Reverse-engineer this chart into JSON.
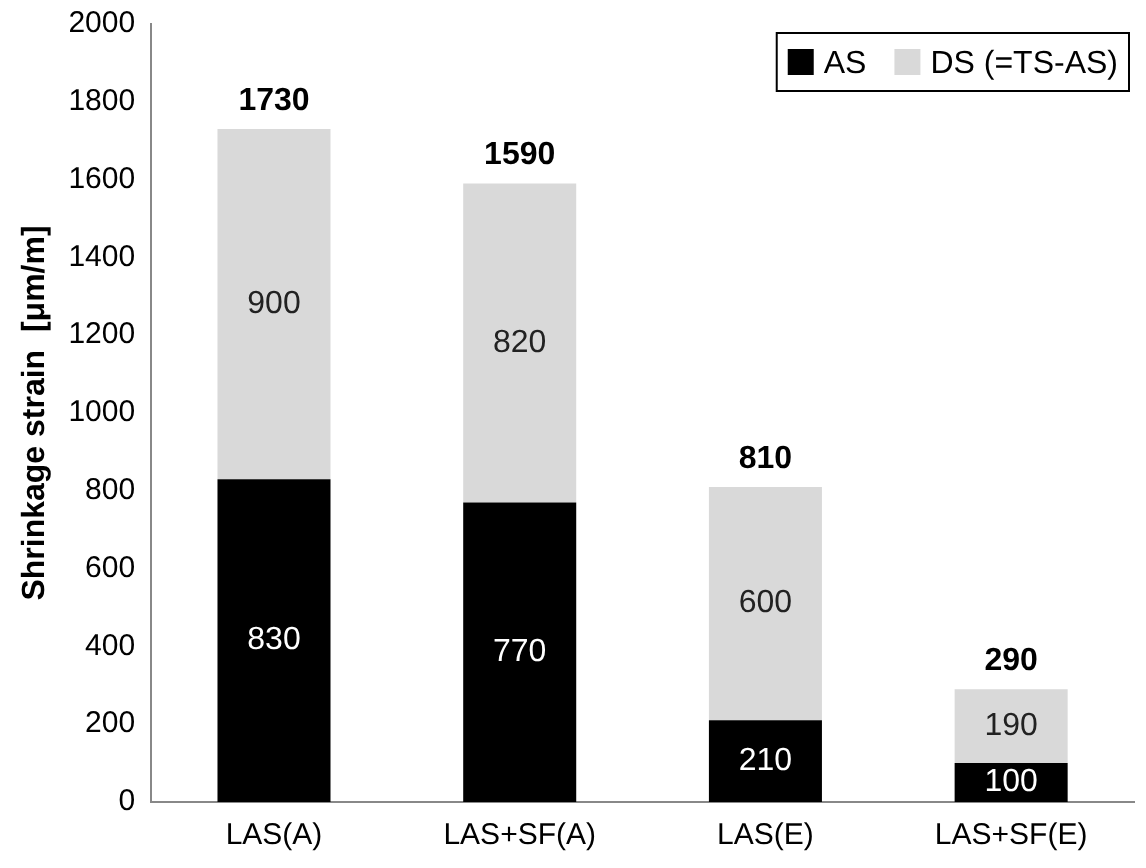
{
  "chart_data": {
    "type": "bar",
    "ylabel": "Shrinkage strain  [μm/m]",
    "categories": [
      "LAS(A)",
      "LAS+SF(A)",
      "LAS(E)",
      "LAS+SF(E)"
    ],
    "series": [
      {
        "name": "AS",
        "color": "#000000",
        "values": [
          830,
          770,
          210,
          100
        ]
      },
      {
        "name": "DS (=TS-AS)",
        "color": "#d9d9d9",
        "values": [
          900,
          820,
          600,
          190
        ]
      }
    ],
    "stacked": true,
    "ylim": [
      0,
      2000
    ],
    "yticks": [
      0,
      200,
      400,
      600,
      800,
      1000,
      1200,
      1400,
      1600,
      1800,
      2000
    ],
    "data_labels": true,
    "totals": [
      "1730",
      "1590",
      "810",
      "290"
    ],
    "legend": "top right"
  }
}
